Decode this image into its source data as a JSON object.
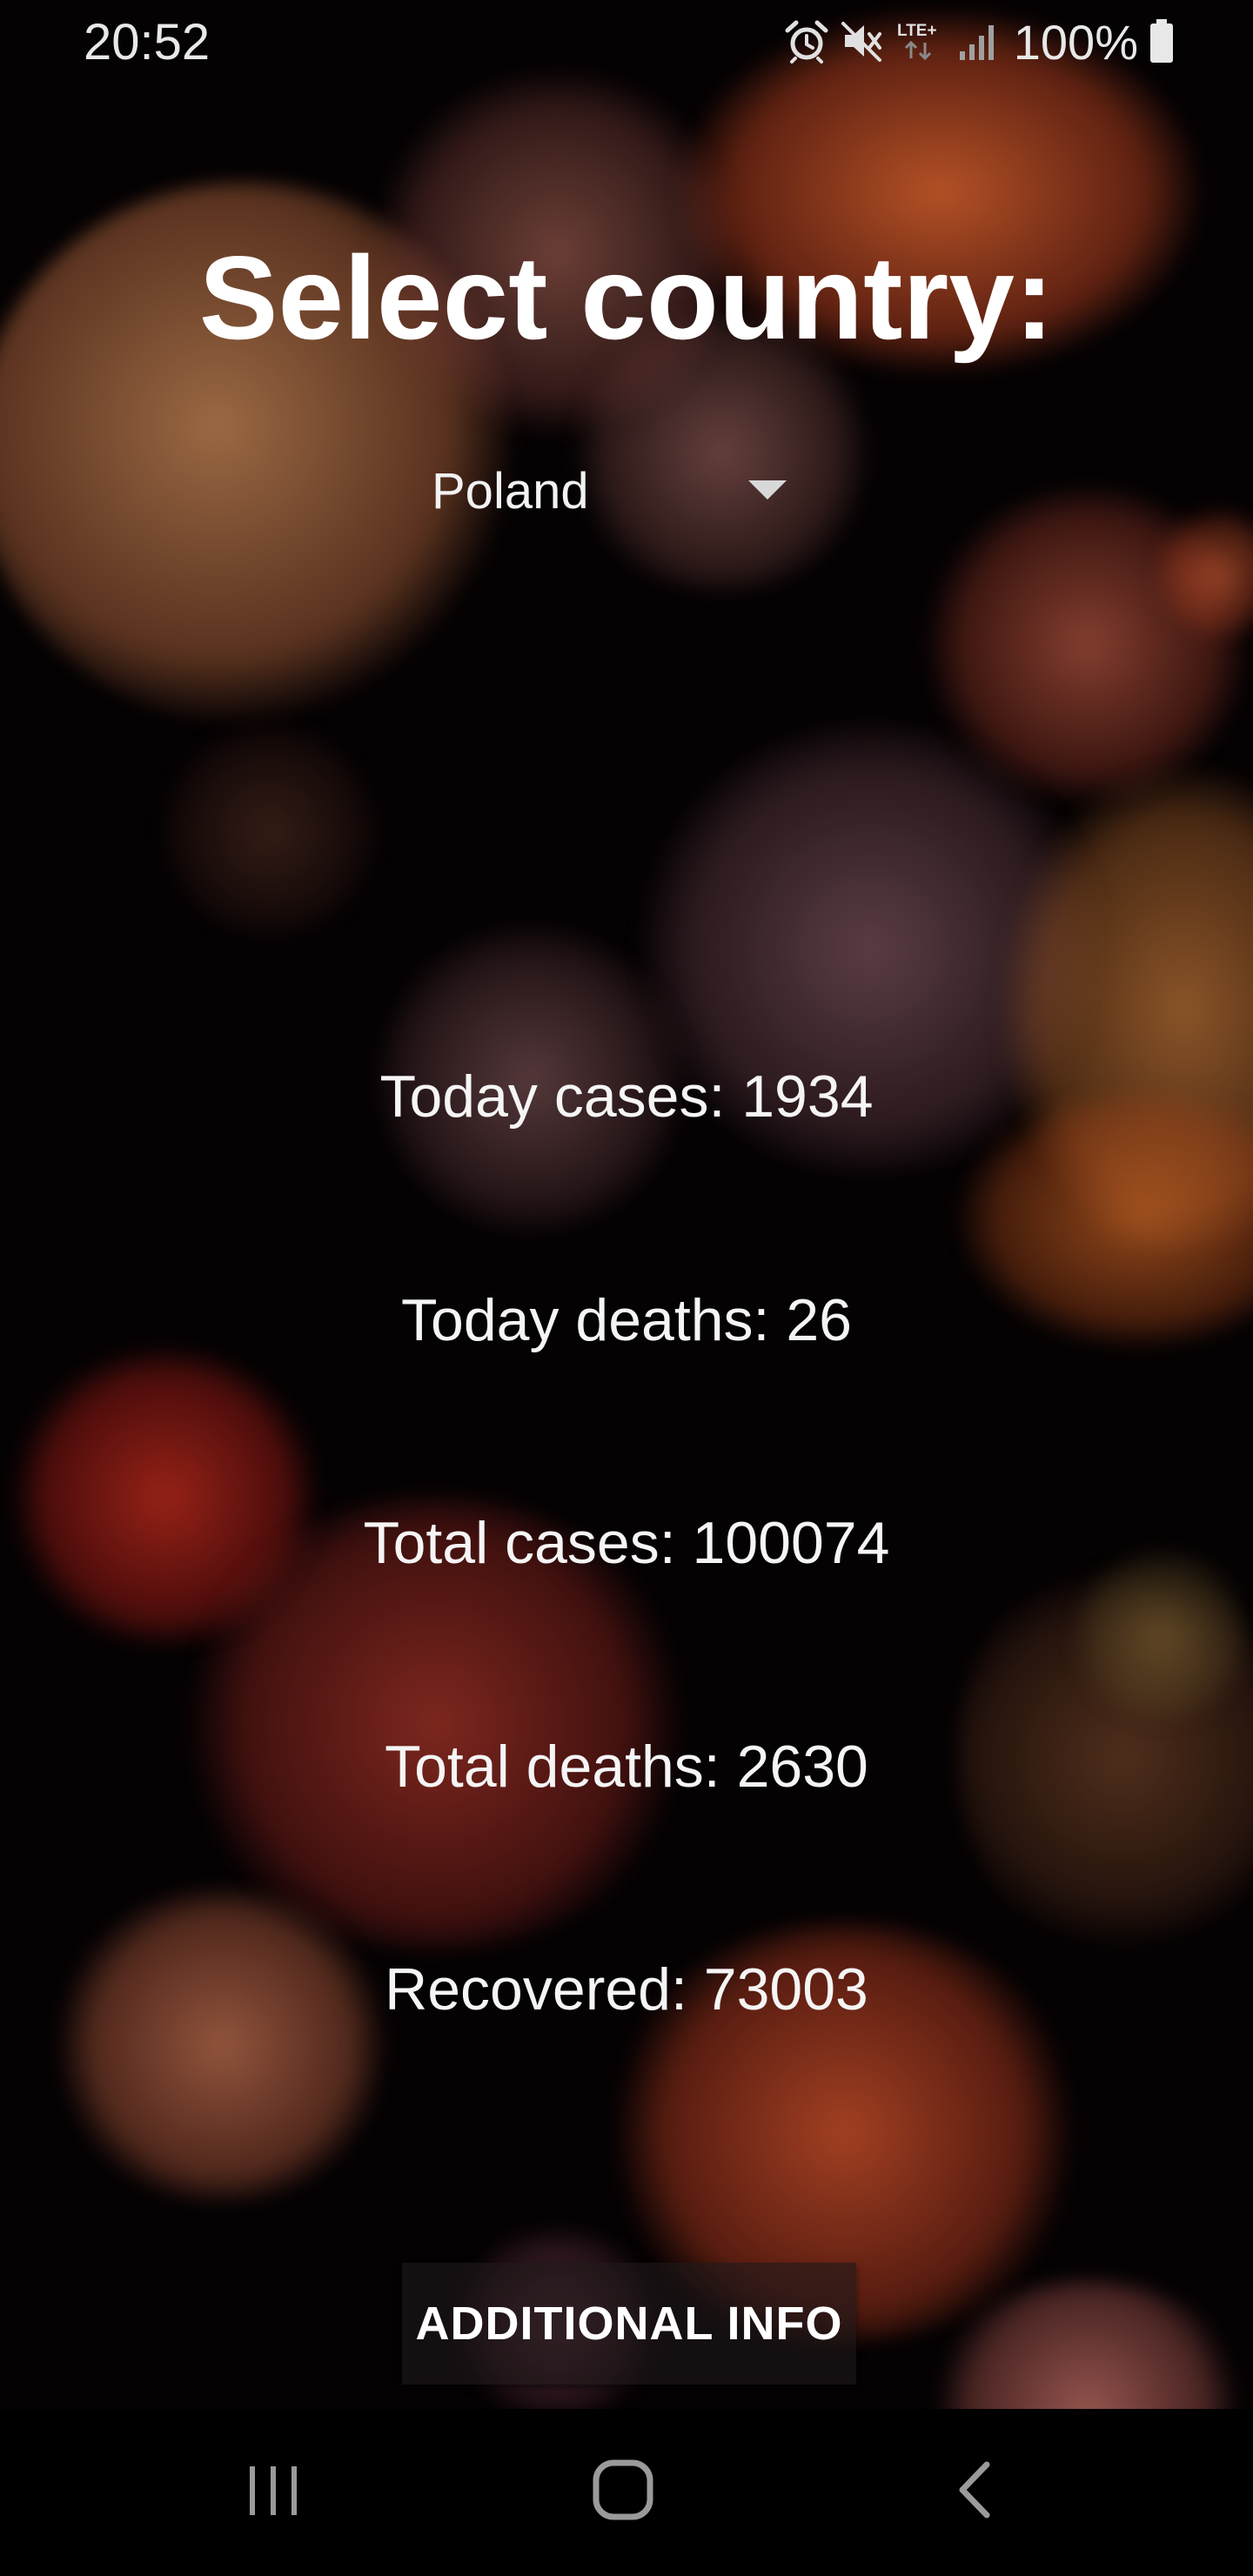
{
  "status_bar": {
    "time": "20:52",
    "battery_text": "100%",
    "network_label": "LTE+",
    "icons": [
      "alarm-icon",
      "mute-icon",
      "lte-icon",
      "signal-icon",
      "battery-icon"
    ]
  },
  "main": {
    "title": "Select country:",
    "country_select": {
      "selected": "Poland"
    },
    "stats": {
      "today_cases": "Today cases: 1934",
      "today_deaths": "Today deaths: 26",
      "total_cases": "Total cases: 100074",
      "total_deaths": "Total deaths: 2630",
      "recovered": "Recovered: 73003"
    },
    "additional_info_label": "ADDITIONAL INFO"
  },
  "nav_bar": {
    "icons": [
      "recents-icon",
      "home-icon",
      "back-icon"
    ]
  },
  "colors": {
    "background": "#050203",
    "text": "#ffffff",
    "button_bg": "#1e181a",
    "nav_bar": "#000000"
  }
}
